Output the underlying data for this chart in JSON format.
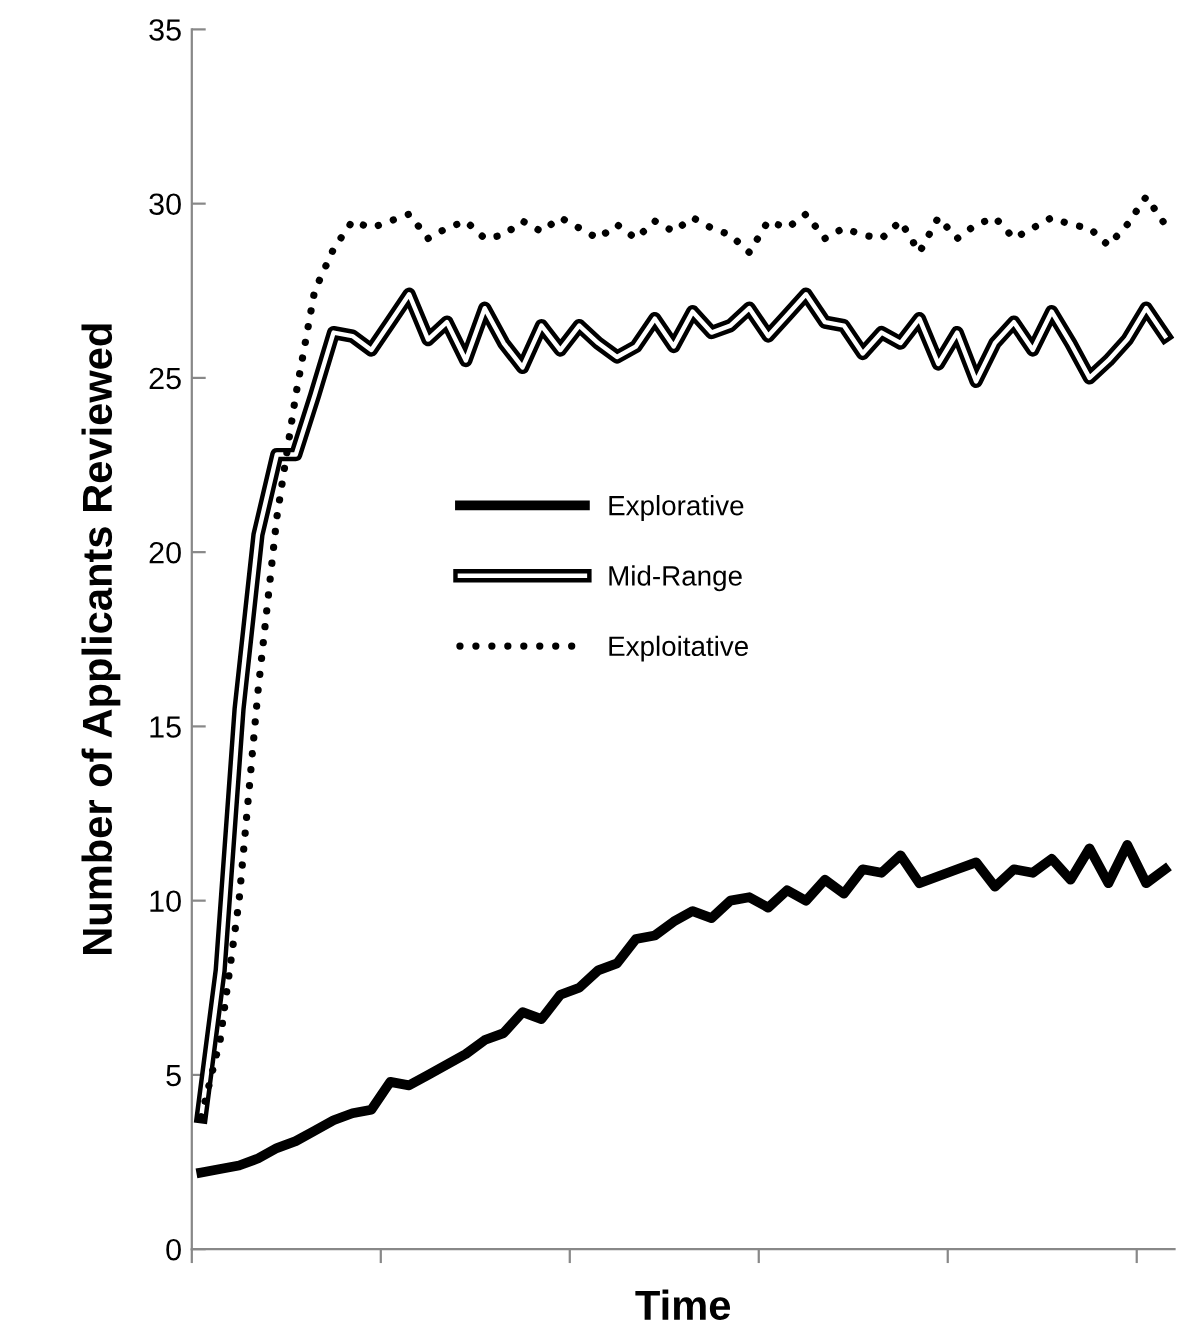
{
  "chart_data": {
    "type": "line",
    "xlabel": "Time",
    "ylabel": "Number of Applicants Reviewed",
    "categories": [
      null,
      null,
      null,
      null,
      null,
      null,
      null,
      null,
      null,
      null,
      null,
      null,
      null,
      null,
      null,
      null,
      null,
      null,
      null,
      null,
      null,
      null,
      null,
      null,
      null,
      null,
      null,
      null,
      null,
      null,
      null,
      null,
      null,
      null,
      null,
      null,
      null,
      null,
      null,
      null,
      null,
      null,
      null,
      null,
      null,
      null,
      null,
      null,
      null,
      null,
      null,
      null
    ],
    "ylim": [
      0,
      35
    ],
    "yticks": [
      0,
      5,
      10,
      15,
      20,
      25,
      30,
      35
    ],
    "grid": false,
    "legend": "center",
    "marker": "none",
    "series": [
      {
        "name": "Explorative",
        "color": "#000000",
        "line_style": "solid",
        "values": [
          2.2,
          2.3,
          2.4,
          2.6,
          2.9,
          3.1,
          3.4,
          3.7,
          3.9,
          4.0,
          4.8,
          4.7,
          5.0,
          5.3,
          5.6,
          6.0,
          6.2,
          6.8,
          6.6,
          7.3,
          7.5,
          8.0,
          8.2,
          8.9,
          9.0,
          9.4,
          9.7,
          9.5,
          10.0,
          10.1,
          9.8,
          10.3,
          10.0,
          10.6,
          10.2,
          10.9,
          10.8,
          11.3,
          10.5,
          10.7,
          10.9,
          11.1,
          10.4,
          10.9,
          10.8,
          11.2,
          10.6,
          11.5,
          10.5,
          11.6,
          10.5,
          10.9
        ]
      },
      {
        "name": "Mid-Range",
        "color": "#000000",
        "line_style": "solid",
        "values": [
          3.8,
          8,
          15.5,
          20.5,
          22.8,
          22.8,
          24.5,
          26.3,
          26.2,
          25.8,
          26.6,
          27.4,
          26.1,
          26.6,
          25.5,
          27.0,
          26.0,
          25.3,
          26.5,
          25.8,
          26.5,
          26.0,
          25.6,
          25.9,
          26.7,
          25.9,
          26.9,
          26.3,
          26.5,
          27.0,
          26.2,
          26.8,
          27.4,
          26.6,
          26.5,
          25.7,
          26.3,
          26.0,
          26.7,
          25.4,
          26.3,
          24.9,
          26.0,
          26.6,
          25.8,
          26.9,
          26.0,
          25.0,
          25.5,
          26.1,
          27.0,
          26.2
        ]
      },
      {
        "name": "Exploitative",
        "color": "#000000",
        "line_style": "dotted",
        "values": [
          3.8,
          6,
          10,
          16,
          21,
          24.5,
          27.5,
          28.7,
          29.5,
          29.3,
          29.5,
          29.7,
          29.0,
          29.3,
          29.5,
          29.0,
          29.1,
          29.5,
          29.2,
          29.6,
          29.3,
          29.0,
          29.4,
          29.0,
          29.5,
          29.2,
          29.6,
          29.3,
          29.1,
          28.6,
          29.5,
          29.3,
          29.7,
          29.0,
          29.3,
          29.1,
          29.0,
          29.5,
          28.6,
          29.6,
          29.0,
          29.4,
          29.6,
          29.0,
          29.3,
          29.6,
          29.4,
          29.3,
          28.8,
          29.4,
          30.2,
          29.4
        ]
      }
    ]
  }
}
